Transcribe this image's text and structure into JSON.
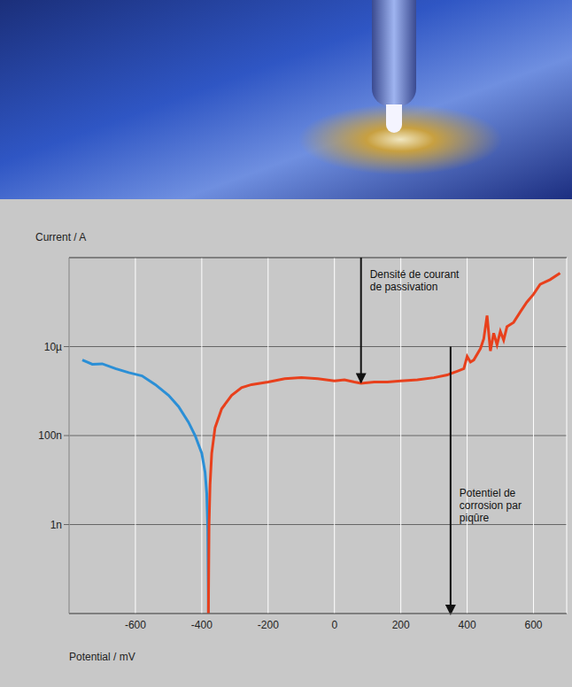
{
  "chart_data": {
    "type": "line",
    "x_label": "Potential / mV",
    "y_label": "Current / A",
    "log": "y",
    "grid": true,
    "xlim": [
      -800,
      700
    ],
    "xticks": [
      -600,
      -400,
      -200,
      0,
      200,
      400,
      600
    ],
    "ylim": [
      1e-11,
      0.001
    ],
    "yticks": [
      {
        "value": 1e-09,
        "label": "1n"
      },
      {
        "value": 1e-07,
        "label": "100n"
      },
      {
        "value": 1e-05,
        "label": "10µ"
      }
    ],
    "series": [
      {
        "color": "#2b8fd6",
        "x": [
          -760,
          -730,
          -700,
          -660,
          -620,
          -580,
          -540,
          -500,
          -470,
          -440,
          -420,
          -400,
          -390,
          -385,
          -382,
          -380
        ],
        "values": [
          5e-06,
          4e-06,
          4.1e-06,
          3.2e-06,
          2.6e-06,
          2.2e-06,
          1.4e-06,
          8e-07,
          4.5e-07,
          2e-07,
          1e-07,
          4e-08,
          1.5e-08,
          5e-09,
          8e-10,
          1e-11
        ]
      },
      {
        "color": "#e8401c",
        "x": [
          -380,
          -378,
          -375,
          -370,
          -360,
          -340,
          -310,
          -280,
          -250,
          -200,
          -150,
          -100,
          -50,
          0,
          30,
          60,
          80,
          120,
          160,
          200,
          250,
          300,
          340,
          370,
          390,
          400,
          410,
          420,
          440,
          450,
          460,
          470,
          480,
          490,
          500,
          510,
          520,
          540,
          560,
          580,
          600,
          620,
          650,
          680
        ],
        "values": [
          1e-11,
          1e-09,
          8e-09,
          4e-08,
          1.5e-07,
          4e-07,
          8e-07,
          1.2e-06,
          1.4e-06,
          1.6e-06,
          1.9e-06,
          2e-06,
          1.9e-06,
          1.7e-06,
          1.8e-06,
          1.6e-06,
          1.5e-06,
          1.6e-06,
          1.6e-06,
          1.7e-06,
          1.8e-06,
          2e-06,
          2.3e-06,
          2.8e-06,
          3.2e-06,
          6e-06,
          4.5e-06,
          5e-06,
          9e-06,
          1.5e-05,
          5e-05,
          8e-06,
          2e-05,
          1.1e-05,
          2.2e-05,
          1.4e-05,
          2.8e-05,
          3.5e-05,
          6e-05,
          0.0001,
          0.00015,
          0.00025,
          0.00032,
          0.00045
        ]
      }
    ],
    "annotations": [
      {
        "text": "Densité de courant de passivation",
        "x": 80,
        "y_start": 0.001,
        "y": 1.6e-06
      },
      {
        "text": "Potentiel de corrosion par piqûre",
        "x": 350,
        "y_start": 1e-05,
        "y": 1e-11
      }
    ]
  }
}
